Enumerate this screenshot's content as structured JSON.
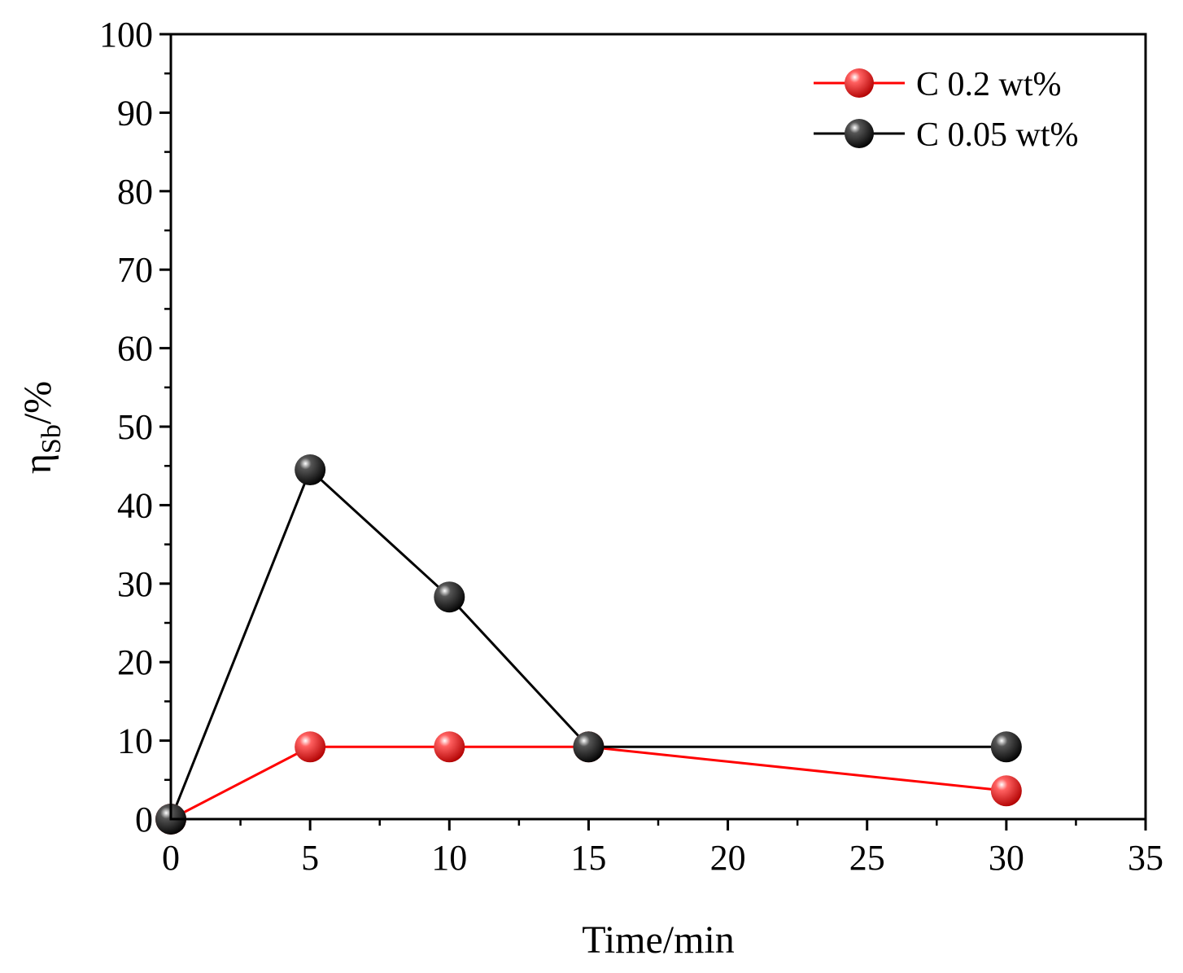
{
  "chart_data": {
    "type": "line",
    "title": "",
    "xlabel": "Time/min",
    "ylabel_main": "η",
    "ylabel_sub": "Sb",
    "ylabel_suffix": "/%",
    "xlim": [
      0,
      35
    ],
    "ylim": [
      0,
      100
    ],
    "x_ticks": [
      0,
      5,
      10,
      15,
      20,
      25,
      30,
      35
    ],
    "y_ticks": [
      0,
      10,
      20,
      30,
      40,
      50,
      60,
      70,
      80,
      90,
      100
    ],
    "x_tick_labels": [
      "0",
      "5",
      "10",
      "15",
      "20",
      "25",
      "30",
      "35"
    ],
    "y_tick_labels": [
      "0",
      "10",
      "20",
      "30",
      "40",
      "50",
      "60",
      "70",
      "80",
      "90",
      "100"
    ],
    "grid": false,
    "legend_position": "top-right",
    "series": [
      {
        "name": "C 0.2 wt%",
        "color": "#ff0000",
        "x": [
          0,
          5,
          10,
          15,
          30
        ],
        "values": [
          0,
          9.2,
          9.2,
          9.2,
          3.6
        ]
      },
      {
        "name": "C 0.05 wt%",
        "color": "#000000",
        "x": [
          0,
          5,
          10,
          15,
          30
        ],
        "values": [
          0,
          44.5,
          28.3,
          9.2,
          9.2
        ]
      }
    ]
  }
}
